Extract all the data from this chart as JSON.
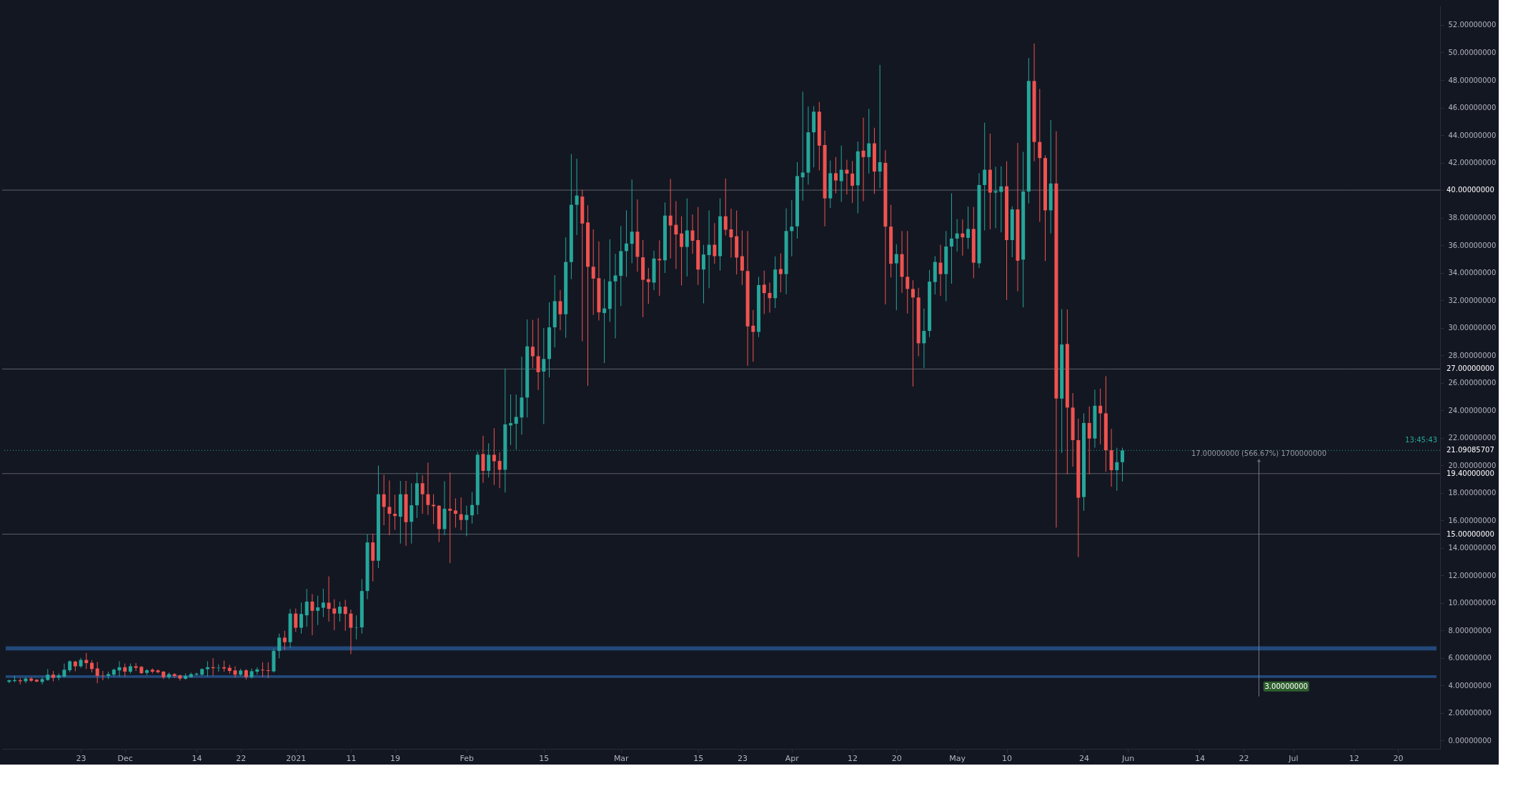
{
  "chart_data": {
    "type": "candlestick",
    "x": [
      "2020-11-10",
      "2020-11-11",
      "2020-11-12",
      "2020-11-13",
      "2020-11-14",
      "2020-11-15",
      "2020-11-16",
      "2020-11-17",
      "2020-11-18",
      "2020-11-19",
      "2020-11-20",
      "2020-11-21",
      "2020-11-22",
      "2020-11-23",
      "2020-11-24",
      "2020-11-25",
      "2020-11-26",
      "2020-11-27",
      "2020-11-28",
      "2020-11-29",
      "2020-11-30",
      "2020-12-01",
      "2020-12-02",
      "2020-12-03",
      "2020-12-04",
      "2020-12-05",
      "2020-12-06",
      "2020-12-07",
      "2020-12-08",
      "2020-12-09",
      "2020-12-10",
      "2020-12-11",
      "2020-12-12",
      "2020-12-13",
      "2020-12-14",
      "2020-12-15",
      "2020-12-16",
      "2020-12-17",
      "2020-12-18",
      "2020-12-19",
      "2020-12-20",
      "2020-12-21",
      "2020-12-22",
      "2020-12-23",
      "2020-12-24",
      "2020-12-25",
      "2020-12-26",
      "2020-12-27",
      "2020-12-28",
      "2020-12-29",
      "2020-12-30",
      "2020-12-31",
      "2021-01-01",
      "2021-01-02",
      "2021-01-03",
      "2021-01-04",
      "2021-01-05",
      "2021-01-06",
      "2021-01-07",
      "2021-01-08",
      "2021-01-09",
      "2021-01-10",
      "2021-01-11",
      "2021-01-12",
      "2021-01-13",
      "2021-01-14",
      "2021-01-15",
      "2021-01-16",
      "2021-01-17",
      "2021-01-18",
      "2021-01-19",
      "2021-01-20",
      "2021-01-21",
      "2021-01-22",
      "2021-01-23",
      "2021-01-24",
      "2021-01-25",
      "2021-01-26",
      "2021-01-27",
      "2021-01-28",
      "2021-01-29",
      "2021-01-30",
      "2021-01-31",
      "2021-02-01",
      "2021-02-02",
      "2021-02-03",
      "2021-02-04",
      "2021-02-05",
      "2021-02-06",
      "2021-02-07",
      "2021-02-08",
      "2021-02-09",
      "2021-02-10",
      "2021-02-11",
      "2021-02-12",
      "2021-02-13",
      "2021-02-14",
      "2021-02-15",
      "2021-02-16",
      "2021-02-17",
      "2021-02-18",
      "2021-02-19",
      "2021-02-20",
      "2021-02-21",
      "2021-02-22",
      "2021-02-23",
      "2021-02-24",
      "2021-02-25",
      "2021-02-26",
      "2021-02-27",
      "2021-02-28",
      "2021-03-01",
      "2021-03-02",
      "2021-03-03",
      "2021-03-04",
      "2021-03-05",
      "2021-03-06",
      "2021-03-07",
      "2021-03-08",
      "2021-03-09",
      "2021-03-10",
      "2021-03-11",
      "2021-03-12",
      "2021-03-13",
      "2021-03-14",
      "2021-03-15",
      "2021-03-16",
      "2021-03-17",
      "2021-03-18",
      "2021-03-19",
      "2021-03-20",
      "2021-03-21",
      "2021-03-22",
      "2021-03-23",
      "2021-03-24",
      "2021-03-25",
      "2021-03-26",
      "2021-03-27",
      "2021-03-28",
      "2021-03-29",
      "2021-03-30",
      "2021-03-31",
      "2021-04-01",
      "2021-04-02",
      "2021-04-03",
      "2021-04-04",
      "2021-04-05",
      "2021-04-06",
      "2021-04-07",
      "2021-04-08",
      "2021-04-09",
      "2021-04-10",
      "2021-04-11",
      "2021-04-12",
      "2021-04-13",
      "2021-04-14",
      "2021-04-15",
      "2021-04-16",
      "2021-04-17",
      "2021-04-18",
      "2021-04-19",
      "2021-04-20",
      "2021-04-21",
      "2021-04-22",
      "2021-04-23",
      "2021-04-24",
      "2021-04-25",
      "2021-04-26",
      "2021-04-27",
      "2021-04-28",
      "2021-04-29",
      "2021-04-30",
      "2021-05-01",
      "2021-05-02",
      "2021-05-03",
      "2021-05-04",
      "2021-05-05",
      "2021-05-06",
      "2021-05-07",
      "2021-05-08",
      "2021-05-09",
      "2021-05-10",
      "2021-05-11",
      "2021-05-12",
      "2021-05-13",
      "2021-05-14",
      "2021-05-15",
      "2021-05-16",
      "2021-05-17",
      "2021-05-18",
      "2021-05-19",
      "2021-05-20",
      "2021-05-21",
      "2021-05-22",
      "2021-05-23",
      "2021-05-24",
      "2021-05-25",
      "2021-05-26",
      "2021-05-27",
      "2021-05-28",
      "2021-05-29",
      "2021-05-30",
      "2021-05-31"
    ],
    "ohlc": [
      [
        4.27,
        4.44,
        4.17,
        4.38
      ],
      [
        4.33,
        4.7,
        4.22,
        4.4
      ],
      [
        4.38,
        4.56,
        4.08,
        4.31
      ],
      [
        4.31,
        4.61,
        4.17,
        4.51
      ],
      [
        4.51,
        4.61,
        4.26,
        4.35
      ],
      [
        4.42,
        4.47,
        4.24,
        4.29
      ],
      [
        4.26,
        4.61,
        4.08,
        4.47
      ],
      [
        4.4,
        5.2,
        4.35,
        4.79
      ],
      [
        4.79,
        5.06,
        4.29,
        4.56
      ],
      [
        4.58,
        4.88,
        4.38,
        4.74
      ],
      [
        4.65,
        5.6,
        4.58,
        5.15
      ],
      [
        5.11,
        5.83,
        4.97,
        5.76
      ],
      [
        5.74,
        5.81,
        5.04,
        5.4
      ],
      [
        5.4,
        6.01,
        5.29,
        5.86
      ],
      [
        5.86,
        6.38,
        5.2,
        5.63
      ],
      [
        5.65,
        5.85,
        4.96,
        5.2
      ],
      [
        5.24,
        5.72,
        4.17,
        4.7
      ],
      [
        4.74,
        5.06,
        4.38,
        4.72
      ],
      [
        4.7,
        5.01,
        4.47,
        4.83
      ],
      [
        4.79,
        5.24,
        4.65,
        5.15
      ],
      [
        5.1,
        5.77,
        4.65,
        5.33
      ],
      [
        5.33,
        5.6,
        4.65,
        5.01
      ],
      [
        5.01,
        5.6,
        4.88,
        5.4
      ],
      [
        5.4,
        5.63,
        5.06,
        5.29
      ],
      [
        5.36,
        5.42,
        4.83,
        4.9
      ],
      [
        4.92,
        5.19,
        4.76,
        5.11
      ],
      [
        5.15,
        5.24,
        4.88,
        5.01
      ],
      [
        5.1,
        5.17,
        4.88,
        4.97
      ],
      [
        5.01,
        5.06,
        4.47,
        4.61
      ],
      [
        4.61,
        4.94,
        4.47,
        4.83
      ],
      [
        4.83,
        4.9,
        4.54,
        4.69
      ],
      [
        4.74,
        4.79,
        4.36,
        4.51
      ],
      [
        4.49,
        4.88,
        4.44,
        4.7
      ],
      [
        4.61,
        4.94,
        4.58,
        4.83
      ],
      [
        4.79,
        4.94,
        4.72,
        4.86
      ],
      [
        4.79,
        5.24,
        4.72,
        5.2
      ],
      [
        5.19,
        5.76,
        4.65,
        5.33
      ],
      [
        5.33,
        5.99,
        4.72,
        5.26
      ],
      [
        5.26,
        5.54,
        5.01,
        5.29
      ],
      [
        5.33,
        5.81,
        5.01,
        5.24
      ],
      [
        5.29,
        5.51,
        4.86,
        5.06
      ],
      [
        5.1,
        5.4,
        4.58,
        4.79
      ],
      [
        4.79,
        5.22,
        4.69,
        5.09
      ],
      [
        5.11,
        5.19,
        4.44,
        4.61
      ],
      [
        4.61,
        5.24,
        4.51,
        5.04
      ],
      [
        5.01,
        5.33,
        4.79,
        5.17
      ],
      [
        5.15,
        5.69,
        4.61,
        5.1
      ],
      [
        5.11,
        5.69,
        4.54,
        5.06
      ],
      [
        5.03,
        6.7,
        4.94,
        6.52
      ],
      [
        6.52,
        7.77,
        5.98,
        7.48
      ],
      [
        7.48,
        7.98,
        6.6,
        7.15
      ],
      [
        7.15,
        9.57,
        6.73,
        9.23
      ],
      [
        9.23,
        9.6,
        7.9,
        8.2
      ],
      [
        8.2,
        10.03,
        7.77,
        9.2
      ],
      [
        9.1,
        11.02,
        8.27,
        10.1
      ],
      [
        10.1,
        10.65,
        7.65,
        9.43
      ],
      [
        9.43,
        10.53,
        8.4,
        9.68
      ],
      [
        9.65,
        11.03,
        8.98,
        10.03
      ],
      [
        10.02,
        11.93,
        8.65,
        9.57
      ],
      [
        9.6,
        10.27,
        8.02,
        9.23
      ],
      [
        9.23,
        10.1,
        8.65,
        9.73
      ],
      [
        9.73,
        10.23,
        7.98,
        9.2
      ],
      [
        9.23,
        9.52,
        6.28,
        8.2
      ],
      [
        8.2,
        9.1,
        7.35,
        8.23
      ],
      [
        8.23,
        11.73,
        7.77,
        10.87
      ],
      [
        10.87,
        14.98,
        10.27,
        14.4
      ],
      [
        14.4,
        15.03,
        11.57,
        13.07
      ],
      [
        13.07,
        19.98,
        12.53,
        17.9
      ],
      [
        17.9,
        19.32,
        15.65,
        16.98
      ],
      [
        16.98,
        18.9,
        14.93,
        16.48
      ],
      [
        16.48,
        17.87,
        15.32,
        16.32
      ],
      [
        16.27,
        18.87,
        14.32,
        17.9
      ],
      [
        17.9,
        18.87,
        14.15,
        15.87
      ],
      [
        15.9,
        18.7,
        14.32,
        17.1
      ],
      [
        17.1,
        19.48,
        16.18,
        18.7
      ],
      [
        18.7,
        19.28,
        16.48,
        17.9
      ],
      [
        17.9,
        20.2,
        16.4,
        17.12
      ],
      [
        17.13,
        17.9,
        15.73,
        17.03
      ],
      [
        17.07,
        17.1,
        14.43,
        15.37
      ],
      [
        15.37,
        18.85,
        14.93,
        16.85
      ],
      [
        16.85,
        19.48,
        12.9,
        16.7
      ],
      [
        16.72,
        17.6,
        15.48,
        16.48
      ],
      [
        16.45,
        17.68,
        15.28,
        16.03
      ],
      [
        16.03,
        17.07,
        14.85,
        16.4
      ],
      [
        16.37,
        18.07,
        15.77,
        17.12
      ],
      [
        17.12,
        20.98,
        16.43,
        20.77
      ],
      [
        20.82,
        22.15,
        18.73,
        19.6
      ],
      [
        19.6,
        21.6,
        19.12,
        20.77
      ],
      [
        20.77,
        22.7,
        18.57,
        20.3
      ],
      [
        20.32,
        20.95,
        18.35,
        19.68
      ],
      [
        19.68,
        27.03,
        18.03,
        22.98
      ],
      [
        22.9,
        25.15,
        21.48,
        23.07
      ],
      [
        23.02,
        25.15,
        21.15,
        23.52
      ],
      [
        23.48,
        27.9,
        22.23,
        24.93
      ],
      [
        24.93,
        30.6,
        23.48,
        28.65
      ],
      [
        28.62,
        30.57,
        27.07,
        27.93
      ],
      [
        27.93,
        30.7,
        25.48,
        26.77
      ],
      [
        26.82,
        29.98,
        23.0,
        27.73
      ],
      [
        27.73,
        31.85,
        26.4,
        30.03
      ],
      [
        30.03,
        33.82,
        28.57,
        31.93
      ],
      [
        31.93,
        32.73,
        29.82,
        30.98
      ],
      [
        30.98,
        36.57,
        29.27,
        34.78
      ],
      [
        34.77,
        42.62,
        33.53,
        38.93
      ],
      [
        38.93,
        42.28,
        36.73,
        39.6
      ],
      [
        39.53,
        40.03,
        29.02,
        37.57
      ],
      [
        37.65,
        38.9,
        25.78,
        34.43
      ],
      [
        34.43,
        37.15,
        30.93,
        33.57
      ],
      [
        33.6,
        36.28,
        30.53,
        31.12
      ],
      [
        31.07,
        33.53,
        27.43,
        31.4
      ],
      [
        31.37,
        36.43,
        30.43,
        33.37
      ],
      [
        33.37,
        35.37,
        29.23,
        33.8
      ],
      [
        33.77,
        37.4,
        31.57,
        35.57
      ],
      [
        35.57,
        38.53,
        33.7,
        36.12
      ],
      [
        36.1,
        40.77,
        34.68,
        36.98
      ],
      [
        36.98,
        39.32,
        34.07,
        35.15
      ],
      [
        35.12,
        36.37,
        30.77,
        33.48
      ],
      [
        33.53,
        34.35,
        31.73,
        33.32
      ],
      [
        33.28,
        35.6,
        32.73,
        35.03
      ],
      [
        35.0,
        36.35,
        32.32,
        34.9
      ],
      [
        34.9,
        39.1,
        33.98,
        38.15
      ],
      [
        38.15,
        40.82,
        35.03,
        37.43
      ],
      [
        37.48,
        39.2,
        34.27,
        36.78
      ],
      [
        36.85,
        38.1,
        33.07,
        35.87
      ],
      [
        35.87,
        39.4,
        33.73,
        37.07
      ],
      [
        37.07,
        38.23,
        35.37,
        36.32
      ],
      [
        36.37,
        38.77,
        33.1,
        34.23
      ],
      [
        34.23,
        36.03,
        31.77,
        35.32
      ],
      [
        35.28,
        38.53,
        32.87,
        36.03
      ],
      [
        36.03,
        37.6,
        34.65,
        35.2
      ],
      [
        35.2,
        39.4,
        34.15,
        38.1
      ],
      [
        38.1,
        40.85,
        36.7,
        37.12
      ],
      [
        37.15,
        38.65,
        35.1,
        36.57
      ],
      [
        36.65,
        38.52,
        33.87,
        35.1
      ],
      [
        35.2,
        37.07,
        33.1,
        34.15
      ],
      [
        34.12,
        37.03,
        27.23,
        30.1
      ],
      [
        30.15,
        31.28,
        27.53,
        29.7
      ],
      [
        29.7,
        33.7,
        29.32,
        33.1
      ],
      [
        33.13,
        34.15,
        31.0,
        32.52
      ],
      [
        32.53,
        33.28,
        31.1,
        32.15
      ],
      [
        32.15,
        35.18,
        31.43,
        34.23
      ],
      [
        34.27,
        35.4,
        32.57,
        33.9
      ],
      [
        33.9,
        38.68,
        32.43,
        37.03
      ],
      [
        37.02,
        39.27,
        35.18,
        37.35
      ],
      [
        37.37,
        42.03,
        36.47,
        41.02
      ],
      [
        40.93,
        47.15,
        39.23,
        41.28
      ],
      [
        41.27,
        46.07,
        40.4,
        44.2
      ],
      [
        44.2,
        46.1,
        41.65,
        45.7
      ],
      [
        45.7,
        46.4,
        41.43,
        43.23
      ],
      [
        43.28,
        44.32,
        37.37,
        39.4
      ],
      [
        39.4,
        42.15,
        38.7,
        41.23
      ],
      [
        41.23,
        42.4,
        39.77,
        40.7
      ],
      [
        40.65,
        43.23,
        39.15,
        41.48
      ],
      [
        41.48,
        42.2,
        39.68,
        41.2
      ],
      [
        41.2,
        42.12,
        39.07,
        40.32
      ],
      [
        40.35,
        43.53,
        38.32,
        42.82
      ],
      [
        42.87,
        45.27,
        39.2,
        42.4
      ],
      [
        42.4,
        45.9,
        41.2,
        43.4
      ],
      [
        43.4,
        44.53,
        39.73,
        41.35
      ],
      [
        41.35,
        49.1,
        40.15,
        42.03
      ],
      [
        41.98,
        42.9,
        31.7,
        37.35
      ],
      [
        37.35,
        38.93,
        33.65,
        34.65
      ],
      [
        34.68,
        36.07,
        31.27,
        35.35
      ],
      [
        35.35,
        37.03,
        32.53,
        33.7
      ],
      [
        33.7,
        37.03,
        31.03,
        32.82
      ],
      [
        32.82,
        33.45,
        25.73,
        32.2
      ],
      [
        32.2,
        32.9,
        27.93,
        28.87
      ],
      [
        28.87,
        31.4,
        27.07,
        29.77
      ],
      [
        29.77,
        34.2,
        29.32,
        33.35
      ],
      [
        33.32,
        35.2,
        32.43,
        34.78
      ],
      [
        34.73,
        36.03,
        32.32,
        33.9
      ],
      [
        33.9,
        37.03,
        31.93,
        35.9
      ],
      [
        35.9,
        39.77,
        33.2,
        36.48
      ],
      [
        36.48,
        37.9,
        35.53,
        36.85
      ],
      [
        36.85,
        37.87,
        35.23,
        36.57
      ],
      [
        36.53,
        38.8,
        35.73,
        37.18
      ],
      [
        37.18,
        38.78,
        33.6,
        34.73
      ],
      [
        34.68,
        41.23,
        34.35,
        40.37
      ],
      [
        40.37,
        44.9,
        37.07,
        41.48
      ],
      [
        41.48,
        44.1,
        37.15,
        39.82
      ],
      [
        39.82,
        41.7,
        37.23,
        39.93
      ],
      [
        39.87,
        41.73,
        36.93,
        40.27
      ],
      [
        40.28,
        42.1,
        32.02,
        36.37
      ],
      [
        36.37,
        38.82,
        35.12,
        38.6
      ],
      [
        38.6,
        43.43,
        32.65,
        34.87
      ],
      [
        34.95,
        42.78,
        31.48,
        39.9
      ],
      [
        39.9,
        49.6,
        39.03,
        47.93
      ],
      [
        47.93,
        50.65,
        42.1,
        43.5
      ],
      [
        43.5,
        47.35,
        37.7,
        42.33
      ],
      [
        42.33,
        42.53,
        34.85,
        38.53
      ],
      [
        38.53,
        45.1,
        36.85,
        40.48
      ],
      [
        40.48,
        44.28,
        15.48,
        24.85
      ],
      [
        24.85,
        31.35,
        20.9,
        28.78
      ],
      [
        28.82,
        31.33,
        19.35,
        24.2
      ],
      [
        24.2,
        25.25,
        19.9,
        21.83
      ],
      [
        21.83,
        23.4,
        13.33,
        17.65
      ],
      [
        17.7,
        23.78,
        16.7,
        23.08
      ],
      [
        23.08,
        24.28,
        19.35,
        21.95
      ],
      [
        21.95,
        25.5,
        21.28,
        24.33
      ],
      [
        24.33,
        25.58,
        21.53,
        23.78
      ],
      [
        23.78,
        26.48,
        19.53,
        21.1
      ],
      [
        21.1,
        22.65,
        18.45,
        19.65
      ],
      [
        19.65,
        21.28,
        18.15,
        20.23
      ],
      [
        20.23,
        21.28,
        18.83,
        21.09
      ]
    ],
    "colors": [
      "#26a69a",
      "#26a69a",
      "#ef5350",
      "#26a69a",
      "#ef5350",
      "#ef5350",
      "#26a69a",
      "#26a69a",
      "#ef5350",
      "#26a69a",
      "#26a69a",
      "#26a69a",
      "#ef5350",
      "#26a69a",
      "#ef5350",
      "#ef5350",
      "#ef5350",
      "#ef5350",
      "#26a69a",
      "#26a69a",
      "#26a69a",
      "#ef5350",
      "#26a69a",
      "#ef5350",
      "#ef5350",
      "#26a69a",
      "#ef5350",
      "#ef5350",
      "#ef5350",
      "#26a69a",
      "#ef5350",
      "#ef5350",
      "#26a69a",
      "#26a69a",
      "#26a69a",
      "#26a69a",
      "#26a69a",
      "#ef5350",
      "#26a69a",
      "#ef5350",
      "#ef5350",
      "#ef5350",
      "#26a69a",
      "#ef5350",
      "#26a69a",
      "#26a69a",
      "#ef5350",
      "#ef5350",
      "#26a69a",
      "#26a69a",
      "#ef5350",
      "#26a69a",
      "#ef5350",
      "#26a69a",
      "#26a69a",
      "#ef5350",
      "#26a69a",
      "#26a69a",
      "#ef5350",
      "#ef5350",
      "#26a69a",
      "#ef5350",
      "#ef5350",
      "#26a69a",
      "#26a69a",
      "#26a69a",
      "#ef5350",
      "#26a69a",
      "#ef5350",
      "#ef5350",
      "#ef5350",
      "#26a69a",
      "#ef5350",
      "#26a69a",
      "#26a69a",
      "#ef5350",
      "#ef5350",
      "#ef5350",
      "#ef5350",
      "#26a69a",
      "#ef5350",
      "#ef5350",
      "#ef5350",
      "#26a69a",
      "#26a69a",
      "#26a69a",
      "#ef5350",
      "#26a69a",
      "#ef5350",
      "#ef5350",
      "#26a69a",
      "#26a69a",
      "#26a69a",
      "#26a69a",
      "#26a69a",
      "#ef5350",
      "#ef5350",
      "#26a69a",
      "#26a69a",
      "#26a69a",
      "#ef5350",
      "#26a69a",
      "#26a69a",
      "#26a69a",
      "#ef5350",
      "#ef5350",
      "#ef5350",
      "#ef5350",
      "#26a69a",
      "#26a69a",
      "#26a69a",
      "#26a69a",
      "#26a69a",
      "#26a69a",
      "#ef5350",
      "#ef5350",
      "#ef5350",
      "#26a69a",
      "#ef5350",
      "#26a69a",
      "#ef5350",
      "#ef5350",
      "#ef5350",
      "#26a69a",
      "#ef5350",
      "#ef5350",
      "#26a69a",
      "#26a69a",
      "#ef5350",
      "#26a69a",
      "#ef5350",
      "#ef5350",
      "#ef5350",
      "#ef5350",
      "#ef5350",
      "#ef5350",
      "#26a69a",
      "#ef5350",
      "#ef5350",
      "#26a69a",
      "#ef5350",
      "#26a69a",
      "#26a69a",
      "#26a69a",
      "#26a69a",
      "#26a69a",
      "#26a69a",
      "#ef5350",
      "#ef5350",
      "#26a69a",
      "#ef5350",
      "#26a69a",
      "#ef5350",
      "#ef5350",
      "#26a69a",
      "#ef5350",
      "#26a69a",
      "#ef5350",
      "#26a69a",
      "#ef5350",
      "#ef5350",
      "#26a69a",
      "#ef5350",
      "#ef5350",
      "#ef5350",
      "#ef5350",
      "#26a69a",
      "#26a69a",
      "#26a69a",
      "#ef5350",
      "#26a69a",
      "#26a69a",
      "#26a69a",
      "#ef5350",
      "#26a69a",
      "#ef5350",
      "#26a69a",
      "#26a69a",
      "#ef5350",
      "#26a69a",
      "#26a69a",
      "#ef5350",
      "#26a69a",
      "#ef5350",
      "#26a69a",
      "#26a69a",
      "#ef5350",
      "#ef5350",
      "#ef5350",
      "#26a69a",
      "#ef5350",
      "#26a69a",
      "#ef5350",
      "#ef5350",
      "#ef5350",
      "#26a69a",
      "#ef5350",
      "#26a69a",
      "#ef5350",
      "#ef5350",
      "#ef5350",
      "#26a69a",
      "#26a69a"
    ],
    "xlim": [
      "2020-11-09T09:00",
      "2021-07-27"
    ],
    "xticks": [
      {
        "value": "2020-11-23",
        "label": "23"
      },
      {
        "value": "2020-12-01",
        "label": "Dec"
      },
      {
        "value": "2020-12-14",
        "label": "14"
      },
      {
        "value": "2020-12-22",
        "label": "22"
      },
      {
        "value": "2021-01-01",
        "label": "2021"
      },
      {
        "value": "2021-01-11",
        "label": "11"
      },
      {
        "value": "2021-01-19",
        "label": "19"
      },
      {
        "value": "2021-02-01",
        "label": "Feb"
      },
      {
        "value": "2021-02-15",
        "label": "15"
      },
      {
        "value": "2021-03-01",
        "label": "Mar"
      },
      {
        "value": "2021-03-15",
        "label": "15"
      },
      {
        "value": "2021-03-23",
        "label": "23"
      },
      {
        "value": "2021-04-01",
        "label": "Apr"
      },
      {
        "value": "2021-04-12",
        "label": "12"
      },
      {
        "value": "2021-04-20",
        "label": "20"
      },
      {
        "value": "2021-05-01",
        "label": "May"
      },
      {
        "value": "2021-05-10",
        "label": "10"
      },
      {
        "value": "2021-05-24",
        "label": "24"
      },
      {
        "value": "2021-06-01",
        "label": "Jun"
      },
      {
        "value": "2021-06-14",
        "label": "14"
      },
      {
        "value": "2021-06-22",
        "label": "22"
      },
      {
        "value": "2021-07-01",
        "label": "Jul"
      },
      {
        "value": "2021-07-12",
        "label": "12"
      },
      {
        "value": "2021-07-20",
        "label": "20"
      }
    ],
    "ylim": [
      -0.6,
      53.4
    ],
    "yticks": [
      {
        "value": 0,
        "label": "0.00000000"
      },
      {
        "value": 2,
        "label": "2.00000000"
      },
      {
        "value": 4,
        "label": "4.00000000"
      },
      {
        "value": 6,
        "label": "6.00000000"
      },
      {
        "value": 8,
        "label": "8.00000000"
      },
      {
        "value": 10,
        "label": "10.00000000"
      },
      {
        "value": 12,
        "label": "12.00000000"
      },
      {
        "value": 14,
        "label": "14.00000000"
      },
      {
        "value": 16,
        "label": "16.00000000"
      },
      {
        "value": 18,
        "label": "18.00000000"
      },
      {
        "value": 20,
        "label": "20.00000000"
      },
      {
        "value": 22,
        "label": "22.00000000"
      },
      {
        "value": 24,
        "label": "24.00000000"
      },
      {
        "value": 26,
        "label": "26.00000000"
      },
      {
        "value": 28,
        "label": "28.00000000"
      },
      {
        "value": 30,
        "label": "30.00000000"
      },
      {
        "value": 32,
        "label": "32.00000000"
      },
      {
        "value": 34,
        "label": "34.00000000"
      },
      {
        "value": 36,
        "label": "36.00000000"
      },
      {
        "value": 38,
        "label": "38.00000000"
      },
      {
        "value": 40,
        "label": null
      },
      {
        "value": 42,
        "label": "42.00000000"
      },
      {
        "value": 44,
        "label": "44.00000000"
      },
      {
        "value": 46,
        "label": "46.00000000"
      },
      {
        "value": 48,
        "label": "48.00000000"
      },
      {
        "value": 50,
        "label": "50.00000000"
      },
      {
        "value": 52,
        "label": "52.00000000"
      }
    ],
    "ref_lines": [
      {
        "axis": "y",
        "value": 40,
        "label": "40.00000000",
        "color": "#5d606b"
      },
      {
        "axis": "y",
        "value": 27,
        "label": "27.00000000",
        "color": "#5d606b"
      },
      {
        "axis": "y",
        "value": 19.4,
        "label": "19.40000000",
        "color": "#5d606b"
      },
      {
        "axis": "y",
        "value": 15,
        "label": "15.00000000",
        "color": "#5d606b"
      },
      {
        "axis": "y",
        "value": 21.09085707,
        "label": "21.09085707",
        "color": "#26a69a",
        "line_style": "dotted"
      }
    ],
    "bands": [
      {
        "axis": "y",
        "from": 6.55,
        "to": 6.85,
        "color": "#22497a"
      },
      {
        "axis": "y",
        "from": 4.55,
        "to": 4.75,
        "color": "#22497a"
      }
    ],
    "annotations": [
      "17.00000000 (566.67%) 1700000000",
      "3.00000000",
      "13:45:43"
    ]
  }
}
